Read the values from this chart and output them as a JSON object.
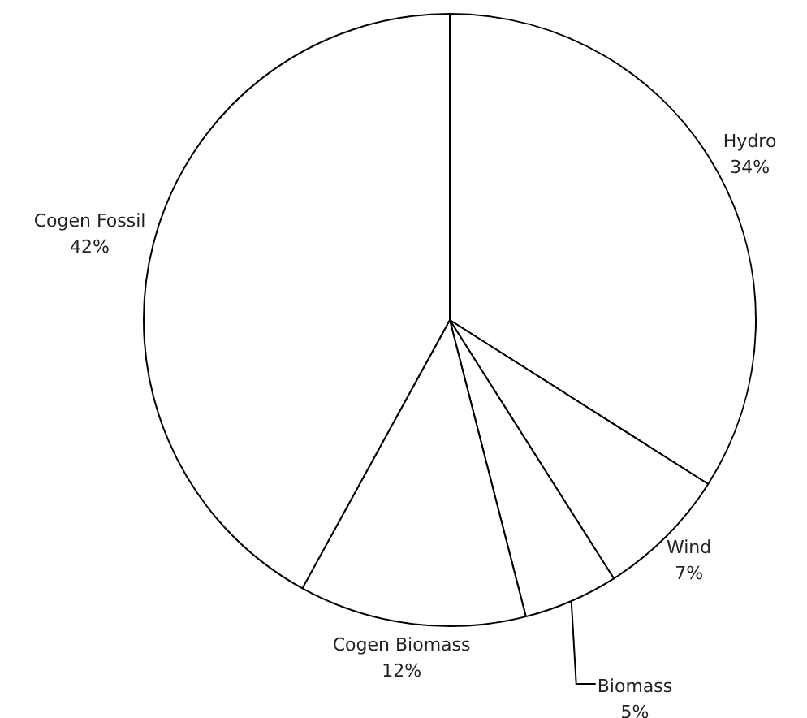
{
  "chart_data": {
    "type": "pie",
    "categories": [
      "Hydro",
      "Wind",
      "Biomass",
      "Cogen Biomass",
      "Cogen Fossil"
    ],
    "values": [
      34,
      7,
      5,
      12,
      42
    ],
    "colors": [
      "#ffffff",
      "#ffffff",
      "#ffffff",
      "#ffffff",
      "#ffffff"
    ],
    "value_labels": [
      "34%",
      "7%",
      "5%",
      "12%",
      "42%"
    ],
    "legend": false
  }
}
